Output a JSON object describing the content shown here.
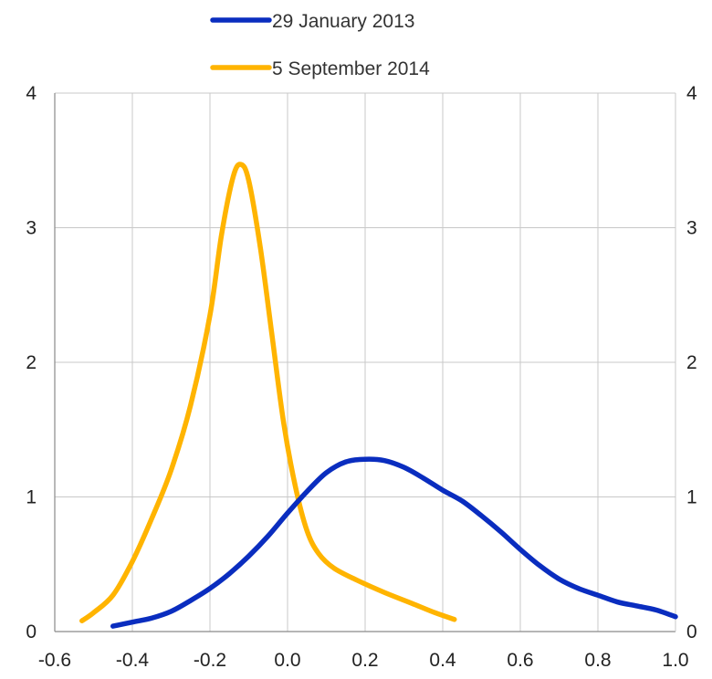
{
  "chart_data": {
    "type": "line",
    "title": "",
    "xlabel": "",
    "ylabel": "",
    "xlim": [
      -0.6,
      1.0
    ],
    "ylim": [
      0,
      4
    ],
    "x_ticks": [
      "-0.6",
      "-0.4",
      "-0.2",
      "0.0",
      "0.2",
      "0.4",
      "0.6",
      "0.8",
      "1.0"
    ],
    "y_ticks": [
      "0",
      "1",
      "2",
      "3",
      "4"
    ],
    "y2_ticks": [
      "0",
      "1",
      "2",
      "3",
      "4"
    ],
    "grid": true,
    "legend_position": "top-center",
    "series": [
      {
        "name": "29 January 2013",
        "color": "#0a2dbf",
        "points": [
          [
            -0.45,
            0.04
          ],
          [
            -0.4,
            0.07
          ],
          [
            -0.35,
            0.1
          ],
          [
            -0.3,
            0.15
          ],
          [
            -0.25,
            0.23
          ],
          [
            -0.2,
            0.32
          ],
          [
            -0.15,
            0.43
          ],
          [
            -0.1,
            0.56
          ],
          [
            -0.05,
            0.71
          ],
          [
            0.0,
            0.88
          ],
          [
            0.05,
            1.04
          ],
          [
            0.1,
            1.18
          ],
          [
            0.15,
            1.26
          ],
          [
            0.2,
            1.28
          ],
          [
            0.25,
            1.27
          ],
          [
            0.3,
            1.22
          ],
          [
            0.35,
            1.14
          ],
          [
            0.4,
            1.05
          ],
          [
            0.45,
            0.97
          ],
          [
            0.5,
            0.86
          ],
          [
            0.55,
            0.74
          ],
          [
            0.6,
            0.61
          ],
          [
            0.65,
            0.49
          ],
          [
            0.7,
            0.39
          ],
          [
            0.75,
            0.32
          ],
          [
            0.8,
            0.27
          ],
          [
            0.85,
            0.22
          ],
          [
            0.9,
            0.19
          ],
          [
            0.95,
            0.16
          ],
          [
            1.0,
            0.11
          ]
        ]
      },
      {
        "name": "5 September 2014",
        "color": "#ffb400",
        "points": [
          [
            -0.53,
            0.08
          ],
          [
            -0.5,
            0.14
          ],
          [
            -0.45,
            0.27
          ],
          [
            -0.4,
            0.52
          ],
          [
            -0.35,
            0.84
          ],
          [
            -0.3,
            1.2
          ],
          [
            -0.25,
            1.68
          ],
          [
            -0.2,
            2.35
          ],
          [
            -0.17,
            2.95
          ],
          [
            -0.14,
            3.38
          ],
          [
            -0.12,
            3.47
          ],
          [
            -0.1,
            3.35
          ],
          [
            -0.07,
            2.85
          ],
          [
            -0.04,
            2.2
          ],
          [
            -0.01,
            1.55
          ],
          [
            0.02,
            1.08
          ],
          [
            0.05,
            0.75
          ],
          [
            0.08,
            0.58
          ],
          [
            0.12,
            0.47
          ],
          [
            0.18,
            0.38
          ],
          [
            0.25,
            0.29
          ],
          [
            0.32,
            0.21
          ],
          [
            0.38,
            0.14
          ],
          [
            0.43,
            0.09
          ]
        ]
      }
    ]
  }
}
